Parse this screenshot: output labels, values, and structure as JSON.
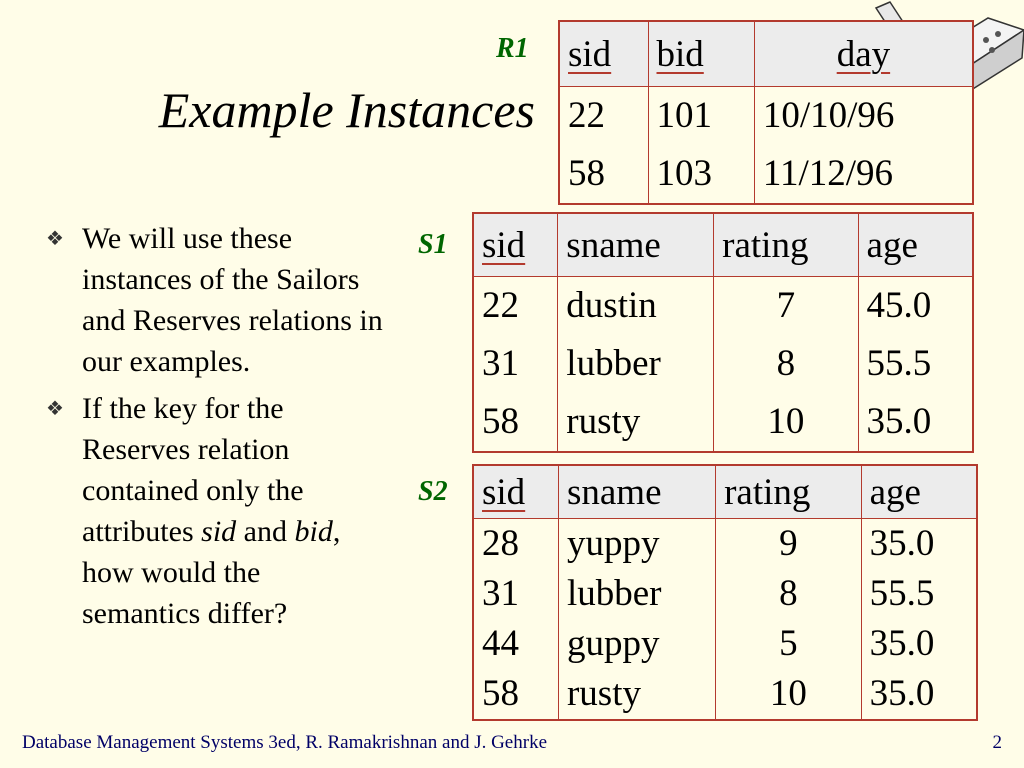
{
  "slide": {
    "title": "Example Instances",
    "footer": "Database Management Systems 3ed,  R. Ramakrishnan and J. Gehrke",
    "page_number": "2",
    "decoration_icon": "power-plug-icon"
  },
  "bullets": [
    {
      "segments": [
        {
          "text": "We will use these instances of the Sailors and Reserves relations in our examples.",
          "italic": false
        }
      ]
    },
    {
      "segments": [
        {
          "text": "If the key for the Reserves relation contained only the attributes ",
          "italic": false
        },
        {
          "text": "sid",
          "italic": true
        },
        {
          "text": " and ",
          "italic": false
        },
        {
          "text": "bid",
          "italic": true
        },
        {
          "text": ", how would the semantics differ?",
          "italic": false
        }
      ]
    }
  ],
  "relations": {
    "r1": {
      "label": "R1",
      "columns": [
        "sid",
        "bid",
        "day"
      ],
      "key_columns": [
        0,
        1
      ],
      "rows": [
        [
          "22",
          "101",
          "10/10/96"
        ],
        [
          "58",
          "103",
          "11/12/96"
        ]
      ]
    },
    "s1": {
      "label": "S1",
      "columns": [
        "sid",
        "sname",
        "rating",
        "age"
      ],
      "key_columns": [
        0
      ],
      "rows": [
        [
          "22",
          "dustin",
          "7",
          "45.0"
        ],
        [
          "31",
          "lubber",
          "8",
          "55.5"
        ],
        [
          "58",
          "rusty",
          "10",
          "35.0"
        ]
      ]
    },
    "s2": {
      "label": "S2",
      "columns": [
        "sid",
        "sname",
        "rating",
        "age"
      ],
      "key_columns": [
        0
      ],
      "rows": [
        [
          "28",
          "yuppy",
          "9",
          "35.0"
        ],
        [
          "31",
          "lubber",
          "8",
          "55.5"
        ],
        [
          "44",
          "guppy",
          "5",
          "35.0"
        ],
        [
          "58",
          "rusty",
          "10",
          "35.0"
        ]
      ]
    }
  }
}
